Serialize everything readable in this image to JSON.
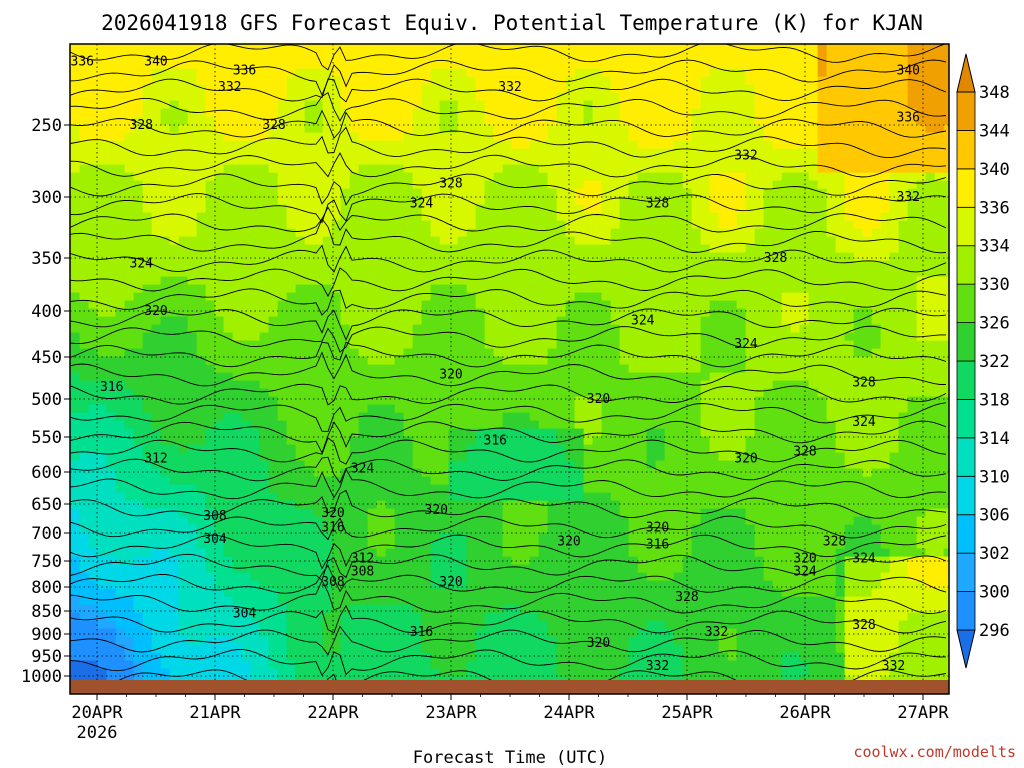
{
  "chart_data": {
    "type": "heatmap",
    "title": "2026041918 GFS Forecast Equiv. Potential Temperature (K) for KJAN",
    "xlabel": "Forecast Time (UTC)",
    "ylabel": "",
    "credit": "coolwx.com/modelts",
    "x_ticks": [
      "20APR",
      "21APR",
      "22APR",
      "23APR",
      "24APR",
      "25APR",
      "26APR",
      "27APR"
    ],
    "x_year": "2026",
    "x_range": [
      "2026-04-19T18:00Z",
      "2026-04-27T06:00Z"
    ],
    "y_ticks": [
      250,
      300,
      350,
      400,
      450,
      500,
      550,
      600,
      650,
      700,
      750,
      800,
      850,
      900,
      950,
      1000
    ],
    "y_range": [
      1010,
      200
    ],
    "y_scale": "log-pressure",
    "colorbar": {
      "levels": [
        296,
        300,
        302,
        306,
        310,
        314,
        318,
        322,
        326,
        330,
        334,
        336,
        340,
        344,
        348
      ],
      "colors": [
        "#1a6ee6",
        "#1e90ff",
        "#1ea8ff",
        "#00bfff",
        "#00d8e8",
        "#00e0c0",
        "#00e090",
        "#10d860",
        "#30d030",
        "#60e010",
        "#a0f000",
        "#d8f800",
        "#ffee00",
        "#ffc800",
        "#f0a000",
        "#e08800"
      ]
    },
    "contour_labels": [
      {
        "time": "19/21Z",
        "p": 210,
        "v": 336
      },
      {
        "time": "20/12Z",
        "p": 210,
        "v": 340
      },
      {
        "time": "21/06Z",
        "p": 215,
        "v": 336
      },
      {
        "time": "21/03Z",
        "p": 225,
        "v": 332
      },
      {
        "time": "20/09Z",
        "p": 250,
        "v": 328
      },
      {
        "time": "21/12Z",
        "p": 250,
        "v": 328
      },
      {
        "time": "23/12Z",
        "p": 225,
        "v": 332
      },
      {
        "time": "23/00Z",
        "p": 290,
        "v": 328
      },
      {
        "time": "22/18Z",
        "p": 305,
        "v": 324
      },
      {
        "time": "24/18Z",
        "p": 305,
        "v": 328
      },
      {
        "time": "25/12Z",
        "p": 270,
        "v": 332
      },
      {
        "time": "26/21Z",
        "p": 300,
        "v": 332
      },
      {
        "time": "26/21Z",
        "p": 215,
        "v": 340
      },
      {
        "time": "26/21Z",
        "p": 245,
        "v": 336
      },
      {
        "time": "25/18Z",
        "p": 350,
        "v": 328
      },
      {
        "time": "20/09Z",
        "p": 355,
        "v": 324
      },
      {
        "time": "20/12Z",
        "p": 400,
        "v": 320
      },
      {
        "time": "24/15Z",
        "p": 410,
        "v": 324
      },
      {
        "time": "25/12Z",
        "p": 435,
        "v": 324
      },
      {
        "time": "26/12Z",
        "p": 480,
        "v": 328
      },
      {
        "time": "20/03Z",
        "p": 485,
        "v": 316
      },
      {
        "time": "23/00Z",
        "p": 470,
        "v": 320
      },
      {
        "time": "24/06Z",
        "p": 500,
        "v": 320
      },
      {
        "time": "26/12Z",
        "p": 530,
        "v": 324
      },
      {
        "time": "20/12Z",
        "p": 580,
        "v": 312
      },
      {
        "time": "22/06Z",
        "p": 595,
        "v": 324
      },
      {
        "time": "23/09Z",
        "p": 555,
        "v": 316
      },
      {
        "time": "25/12Z",
        "p": 580,
        "v": 320
      },
      {
        "time": "26/00Z",
        "p": 570,
        "v": 328
      },
      {
        "time": "21/00Z",
        "p": 670,
        "v": 308
      },
      {
        "time": "22/00Z",
        "p": 665,
        "v": 320
      },
      {
        "time": "22/21Z",
        "p": 660,
        "v": 320
      },
      {
        "time": "21/00Z",
        "p": 710,
        "v": 304
      },
      {
        "time": "22/00Z",
        "p": 690,
        "v": 316
      },
      {
        "time": "24/18Z",
        "p": 690,
        "v": 320
      },
      {
        "time": "24/00Z",
        "p": 715,
        "v": 320
      },
      {
        "time": "24/18Z",
        "p": 720,
        "v": 316
      },
      {
        "time": "22/06Z",
        "p": 745,
        "v": 312
      },
      {
        "time": "22/00Z",
        "p": 790,
        "v": 308
      },
      {
        "time": "22/06Z",
        "p": 770,
        "v": 308
      },
      {
        "time": "23/00Z",
        "p": 790,
        "v": 320
      },
      {
        "time": "26/00Z",
        "p": 745,
        "v": 320
      },
      {
        "time": "26/00Z",
        "p": 770,
        "v": 324
      },
      {
        "time": "26/06Z",
        "p": 715,
        "v": 328
      },
      {
        "time": "26/12Z",
        "p": 745,
        "v": 324
      },
      {
        "time": "25/00Z",
        "p": 820,
        "v": 328
      },
      {
        "time": "21/06Z",
        "p": 855,
        "v": 304
      },
      {
        "time": "22/18Z",
        "p": 895,
        "v": 316
      },
      {
        "time": "24/06Z",
        "p": 920,
        "v": 320
      },
      {
        "time": "25/06Z",
        "p": 895,
        "v": 332
      },
      {
        "time": "26/12Z",
        "p": 880,
        "v": 328
      },
      {
        "time": "24/18Z",
        "p": 975,
        "v": 332
      },
      {
        "time": "26/18Z",
        "p": 975,
        "v": 332
      }
    ]
  }
}
